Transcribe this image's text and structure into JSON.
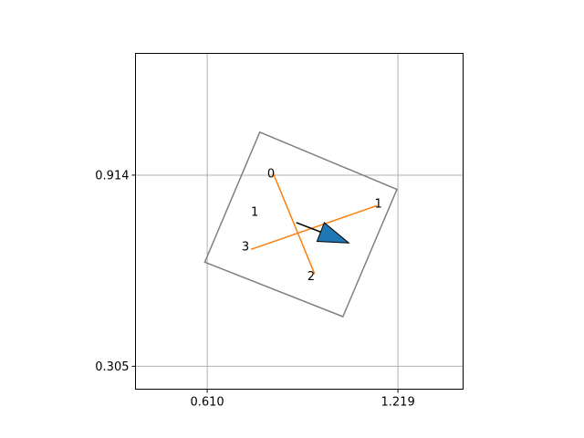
{
  "chart_data": {
    "type": "scatter",
    "grid": true,
    "xlim": [
      0.381,
      1.427
    ],
    "ylim": [
      0.232,
      1.302
    ],
    "x_ticks": [
      {
        "value": 0.61,
        "label": "0.610"
      },
      {
        "value": 1.219,
        "label": "1.219"
      }
    ],
    "y_ticks": [
      {
        "value": 0.914,
        "label": "0.914"
      },
      {
        "value": 0.305,
        "label": "0.305"
      }
    ],
    "box": {
      "corners": [
        {
          "x": 0.7778,
          "y": 1.0512
        },
        {
          "x": 1.2159,
          "y": 0.8688
        },
        {
          "x": 1.0434,
          "y": 0.4631
        },
        {
          "x": 0.6022,
          "y": 0.6367
        }
      ]
    },
    "axis_lines": [
      {
        "from": {
          "x": 0.8197,
          "y": 0.9223
        },
        "to": {
          "x": 0.9531,
          "y": 0.599
        }
      },
      {
        "from": {
          "x": 1.1528,
          "y": 0.8172
        },
        "to": {
          "x": 0.7497,
          "y": 0.6773
        }
      }
    ],
    "center": {
      "x": 0.8944,
      "y": 0.7629
    },
    "arrow": {
      "from": {
        "x": 0.8944,
        "y": 0.7629
      },
      "to": {
        "x": 1.0619,
        "y": 0.6982
      }
    },
    "point_labels": [
      {
        "text": "0",
        "x": 0.8139,
        "y": 0.9199
      },
      {
        "text": "1",
        "x": 1.1565,
        "y": 0.8233
      },
      {
        "text": "2",
        "x": 0.9417,
        "y": 0.5931
      },
      {
        "text": "3",
        "x": 0.7323,
        "y": 0.6865
      },
      {
        "text": "1",
        "x": 0.7615,
        "y": 0.7978
      }
    ],
    "colors": {
      "axes": "#000000",
      "grid": "#b0b0b0",
      "box": "#808080",
      "axis_lines": "#ff7f0e",
      "arrow_fill": "#1f77b4",
      "arrow_edge": "#000000"
    }
  }
}
